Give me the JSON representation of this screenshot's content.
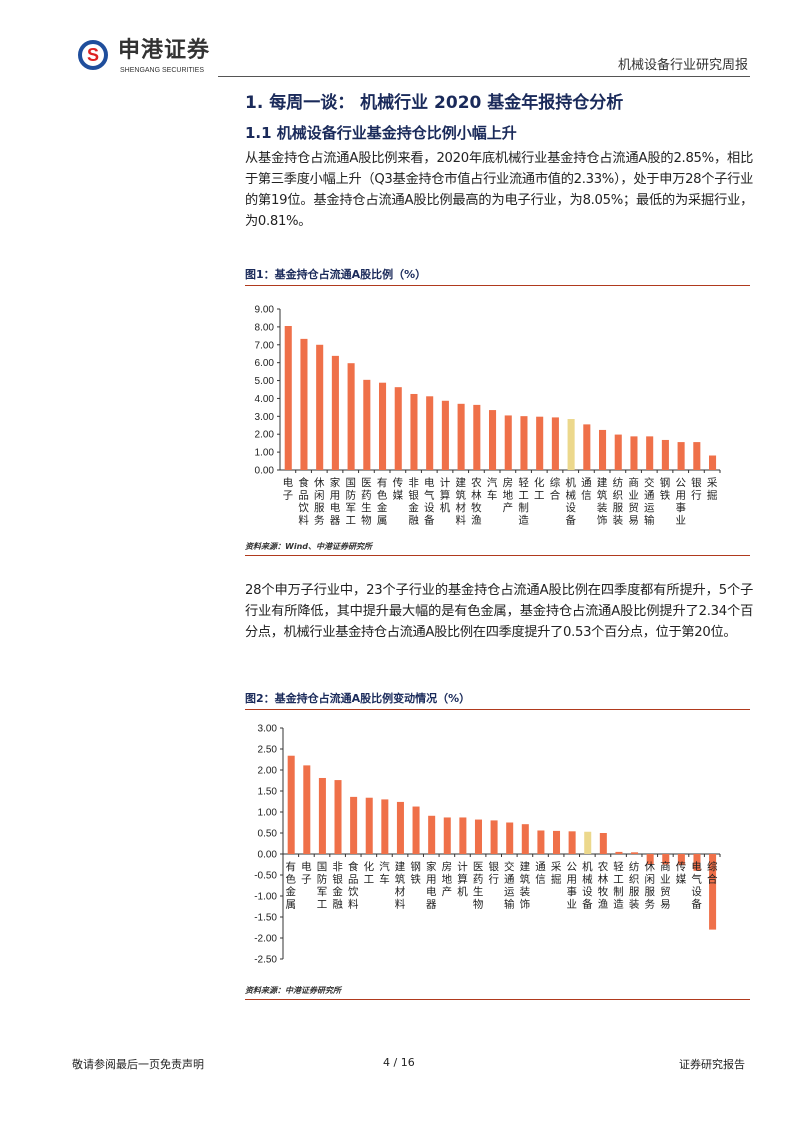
{
  "header": {
    "logo_cn": "申港证券",
    "logo_en": "SHENGANG SECURITIES",
    "report_title": "机械设备行业研究周报"
  },
  "heading1": "1. 每周一谈： 机械行业 2020 基金年报持仓分析",
  "heading2": "1.1 机械设备行业基金持仓比例小幅上升",
  "para1": "从基金持仓占流通A股比例来看，2020年底机械行业基金持仓占流通A股的2.85%，相比于第三季度小幅上升（Q3基金持仓市值占行业流通市值的2.33%），处于申万28个子行业的第19位。基金持仓占流通A股比例最高的为电子行业，为8.05%；最低的为采掘行业，为0.81%。",
  "figure1": {
    "caption": "图1：基金持仓占流通A股比例（%）",
    "source": "资料来源：Wind、中港证券研究所"
  },
  "para2": "28个申万子行业中，23个子行业的基金持仓占流通A股比例在四季度都有所提升，5个子行业有所降低，其中提升最大幅的是有色金属，基金持仓占流通A股比例提升了2.34个百分点，机械行业基金持仓占流通A股比例在四季度提升了0.53个百分点，位于第20位。",
  "figure2": {
    "caption": "图2：基金持仓占流通A股比例变动情况（%）",
    "source": "资料来源：中港证券研究所"
  },
  "footer": {
    "disclaimer": "敬请参阅最后一页免责声明",
    "page": "4 / 16",
    "type": "证券研究报告"
  },
  "colors": {
    "bar": "#ef7049",
    "highlight": "#ecd88c"
  },
  "chart_data": [
    {
      "type": "bar",
      "title": "基金持仓占流通A股比例（%）",
      "ylim": [
        0,
        9
      ],
      "yticks": [
        "0.00",
        "1.00",
        "2.00",
        "3.00",
        "4.00",
        "5.00",
        "6.00",
        "7.00",
        "8.00",
        "9.00"
      ],
      "highlight": "机械设备",
      "categories": [
        "电子",
        "食品饮料",
        "休闲服务",
        "家用电器",
        "国防军工",
        "医药生物",
        "有色金属",
        "传媒",
        "非银金融",
        "电气设备",
        "计算机",
        "建筑材料",
        "农林牧渔",
        "汽车",
        "房地产",
        "轻工制造",
        "化工",
        "综合",
        "机械设备",
        "通信",
        "建筑装饰",
        "纺织服装",
        "商业贸易",
        "交通运输",
        "钢铁",
        "公用事业",
        "银行",
        "采掘"
      ],
      "values": [
        8.05,
        7.33,
        7.0,
        6.38,
        5.97,
        5.04,
        4.88,
        4.63,
        4.25,
        4.12,
        3.87,
        3.7,
        3.64,
        3.35,
        3.05,
        3.01,
        2.98,
        2.94,
        2.85,
        2.55,
        2.24,
        1.98,
        1.88,
        1.88,
        1.68,
        1.56,
        1.56,
        0.81
      ]
    },
    {
      "type": "bar",
      "title": "基金持仓占流通A股比例变动情况（%）",
      "ylim": [
        -2.5,
        3
      ],
      "yticks": [
        "-2.50",
        "-2.00",
        "-1.50",
        "-1.00",
        "-0.50",
        "0.00",
        "0.50",
        "1.00",
        "1.50",
        "2.00",
        "2.50",
        "3.00"
      ],
      "highlight": "机械设备",
      "categories": [
        "有色金属",
        "电子",
        "国防军工",
        "非银金融",
        "食品饮料",
        "化工",
        "汽车",
        "建筑材料",
        "钢铁",
        "家用电器",
        "房地产",
        "计算机",
        "医药生物",
        "银行",
        "交通运输",
        "建筑装饰",
        "通信",
        "采掘",
        "公用事业",
        "机械设备",
        "农林牧渔",
        "轻工制造",
        "纺织服装",
        "休闲服务",
        "商业贸易",
        "传媒",
        "电气设备",
        "综合"
      ],
      "values": [
        2.34,
        2.11,
        1.81,
        1.76,
        1.36,
        1.34,
        1.3,
        1.24,
        1.13,
        0.91,
        0.87,
        0.87,
        0.82,
        0.8,
        0.75,
        0.71,
        0.56,
        0.55,
        0.54,
        0.53,
        0.5,
        0.05,
        0.04,
        -0.25,
        -0.25,
        -0.25,
        -0.4,
        -1.8
      ]
    }
  ]
}
